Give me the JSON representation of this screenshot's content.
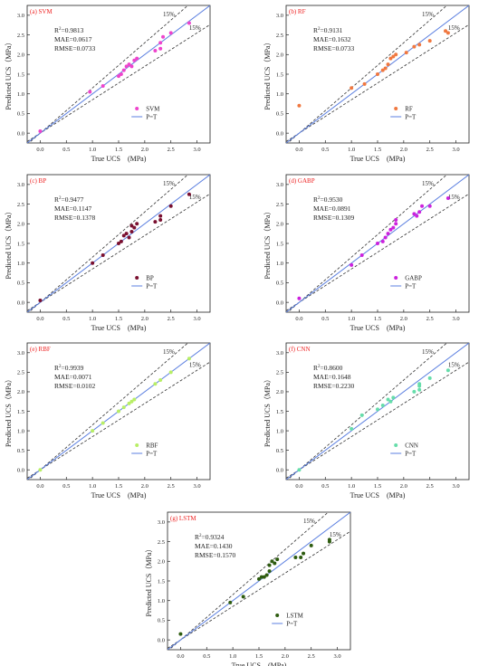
{
  "chart_data": [
    {
      "type": "scatter",
      "panel_label": "(a) SVM",
      "xlabel": "True UCS　(MPa)",
      "ylabel": "Predicted UCS（MPa）",
      "xlim": [
        -0.25,
        3.25
      ],
      "ylim": [
        -0.25,
        3.25
      ],
      "xticks": [
        "0.0",
        "0.5",
        "1.0",
        "1.5",
        "2.0",
        "2.5",
        "3.0"
      ],
      "yticks": [
        "0.0",
        "0.5",
        "1.0",
        "1.5",
        "2.0",
        "2.5",
        "3.0"
      ],
      "stats": [
        "R²=0.9813",
        "MAE=0.0617",
        "RMSE=0.0733"
      ],
      "band_labels": [
        "15%",
        "15%"
      ],
      "legend": [
        "SVM",
        "P=T"
      ],
      "legend_position": "bottom-right",
      "point_color": "#ee44cc",
      "series": [
        {
          "name": "SVM",
          "x": [
            0.0,
            0.95,
            1.2,
            1.5,
            1.55,
            1.6,
            1.65,
            1.7,
            1.75,
            1.8,
            1.85,
            2.2,
            2.3,
            2.3,
            2.35,
            2.5,
            2.85
          ],
          "y": [
            0.05,
            1.05,
            1.2,
            1.45,
            1.5,
            1.6,
            1.7,
            1.75,
            1.7,
            1.85,
            1.9,
            2.1,
            2.15,
            2.3,
            2.45,
            2.55,
            2.8
          ]
        }
      ]
    },
    {
      "type": "scatter",
      "panel_label": "(b) RF",
      "xlabel": "True UCS　(MPa)",
      "ylabel": "Predicted UCS（MPa）",
      "xlim": [
        -0.25,
        3.25
      ],
      "ylim": [
        -0.25,
        3.25
      ],
      "xticks": [
        "0.0",
        "0.5",
        "1.0",
        "1.5",
        "2.0",
        "2.5",
        "3.0"
      ],
      "yticks": [
        "0.0",
        "0.5",
        "1.0",
        "1.5",
        "2.0",
        "2.5",
        "3.0"
      ],
      "stats": [
        "R²=0.9131",
        "MAE=0.1632",
        "RMSE=0.0733"
      ],
      "band_labels": [
        "15%",
        "15%"
      ],
      "legend": [
        "RF",
        "P=T"
      ],
      "legend_position": "bottom-right",
      "point_color": "#f07840",
      "series": [
        {
          "name": "RF",
          "x": [
            0.0,
            1.0,
            1.25,
            1.5,
            1.6,
            1.65,
            1.7,
            1.75,
            1.8,
            1.85,
            2.05,
            2.2,
            2.3,
            2.5,
            2.8,
            2.85
          ],
          "y": [
            0.7,
            1.15,
            1.25,
            1.5,
            1.6,
            1.65,
            1.75,
            1.9,
            1.95,
            2.0,
            2.05,
            2.2,
            2.25,
            2.35,
            2.6,
            2.55
          ]
        }
      ]
    },
    {
      "type": "scatter",
      "panel_label": "(c) BP",
      "xlabel": "True UCS　(MPa)",
      "ylabel": "Predicted UCS（MPa）",
      "xlim": [
        -0.25,
        3.25
      ],
      "ylim": [
        -0.25,
        3.25
      ],
      "xticks": [
        "0.0",
        "0.5",
        "1.0",
        "1.5",
        "2.0",
        "2.5",
        "3.0"
      ],
      "yticks": [
        "0.0",
        "0.5",
        "1.0",
        "1.5",
        "2.0",
        "2.5",
        "3.0"
      ],
      "stats": [
        "R²=0.9477",
        "MAE=0.1147",
        "RMSE=0.1378"
      ],
      "band_labels": [
        "15%",
        "15%"
      ],
      "legend": [
        "BP",
        "P=T"
      ],
      "legend_position": "bottom-right",
      "point_color": "#7a1030",
      "series": [
        {
          "name": "BP",
          "x": [
            0.0,
            1.0,
            1.2,
            1.5,
            1.55,
            1.6,
            1.65,
            1.7,
            1.75,
            1.75,
            1.8,
            1.85,
            2.2,
            2.3,
            2.3,
            2.5,
            2.85
          ],
          "y": [
            0.05,
            1.0,
            1.2,
            1.5,
            1.55,
            1.7,
            1.75,
            1.65,
            1.8,
            1.95,
            1.9,
            2.0,
            2.05,
            2.1,
            2.2,
            2.45,
            2.75
          ]
        }
      ]
    },
    {
      "type": "scatter",
      "panel_label": "(d) GABP",
      "xlabel": "True UCS　(MPa)",
      "ylabel": "Predicted UCS（MPa）",
      "xlim": [
        -0.25,
        3.25
      ],
      "ylim": [
        -0.25,
        3.25
      ],
      "xticks": [
        "0.0",
        "0.5",
        "1.0",
        "1.5",
        "2.0",
        "2.5",
        "3.0"
      ],
      "yticks": [
        "0.0",
        "0.5",
        "1.0",
        "1.5",
        "2.0",
        "2.5",
        "3.0"
      ],
      "stats": [
        "R²=0.9530",
        "MAE=0.0891",
        "RMSE=0.1309"
      ],
      "band_labels": [
        "15%",
        "15%"
      ],
      "legend": [
        "GABP",
        "P=T"
      ],
      "legend_position": "bottom-right",
      "point_color": "#cc22dd",
      "series": [
        {
          "name": "GABP",
          "x": [
            0.0,
            1.0,
            1.2,
            1.5,
            1.6,
            1.65,
            1.7,
            1.75,
            1.8,
            1.85,
            1.85,
            2.2,
            2.25,
            2.3,
            2.35,
            2.5,
            2.85
          ],
          "y": [
            0.1,
            0.95,
            1.2,
            1.5,
            1.55,
            1.65,
            1.75,
            1.85,
            1.9,
            2.0,
            2.1,
            2.25,
            2.2,
            2.3,
            2.45,
            2.45,
            2.65
          ]
        }
      ]
    },
    {
      "type": "scatter",
      "panel_label": "(e) RBF",
      "xlabel": "True UCS　(MPa)",
      "ylabel": "Predicted UCS（MPa）",
      "xlim": [
        -0.25,
        3.25
      ],
      "ylim": [
        -0.25,
        3.25
      ],
      "xticks": [
        "0.0",
        "0.5",
        "1.0",
        "1.5",
        "2.0",
        "2.5",
        "3.0"
      ],
      "yticks": [
        "0.0",
        "0.5",
        "1.0",
        "1.5",
        "2.0",
        "2.5",
        "3.0"
      ],
      "stats": [
        "R²=0.9939",
        "MAE=0.0071",
        "RMSE=0.0102"
      ],
      "band_labels": [
        "15%",
        "15%"
      ],
      "legend": [
        "RBF",
        "P=T"
      ],
      "legend_position": "bottom-right",
      "point_color": "#b8ee66",
      "series": [
        {
          "name": "RBF",
          "x": [
            0.0,
            1.0,
            1.2,
            1.5,
            1.6,
            1.7,
            1.75,
            1.8,
            2.2,
            2.3,
            2.5,
            2.85
          ],
          "y": [
            0.0,
            1.0,
            1.2,
            1.5,
            1.6,
            1.7,
            1.75,
            1.8,
            2.2,
            2.3,
            2.5,
            2.85
          ]
        }
      ]
    },
    {
      "type": "scatter",
      "panel_label": "(f) CNN",
      "xlabel": "True UCS　(MPa)",
      "ylabel": "Predicted UCS（MPa）",
      "xlim": [
        -0.25,
        3.25
      ],
      "ylim": [
        -0.25,
        3.25
      ],
      "xticks": [
        "0.0",
        "0.5",
        "1.0",
        "1.5",
        "2.0",
        "2.5",
        "3.0"
      ],
      "yticks": [
        "0.0",
        "0.5",
        "1.0",
        "1.5",
        "2.0",
        "2.5",
        "3.0"
      ],
      "stats": [
        "R²=0.8600",
        "MAE=0.1648",
        "RMSE=0.2230"
      ],
      "band_labels": [
        "15%",
        "15%"
      ],
      "legend": [
        "CNN",
        "P=T"
      ],
      "legend_position": "bottom-right",
      "point_color": "#66ddaa",
      "series": [
        {
          "name": "CNN",
          "x": [
            0.0,
            1.0,
            1.2,
            1.5,
            1.6,
            1.7,
            1.75,
            1.8,
            2.2,
            2.3,
            2.3,
            2.3,
            2.5,
            2.85
          ],
          "y": [
            0.0,
            1.05,
            1.4,
            1.55,
            1.65,
            1.8,
            1.75,
            1.85,
            2.0,
            2.05,
            2.15,
            2.2,
            2.35,
            2.55
          ]
        }
      ]
    },
    {
      "type": "scatter",
      "panel_label": "(g) LSTM",
      "xlabel": "True UCS　(MPa)",
      "ylabel": "Predicted UCS（MPa）",
      "xlim": [
        -0.25,
        3.25
      ],
      "ylim": [
        -0.25,
        3.25
      ],
      "xticks": [
        "0.0",
        "0.5",
        "1.0",
        "1.5",
        "2.0",
        "2.5",
        "3.0"
      ],
      "yticks": [
        "0.0",
        "0.5",
        "1.0",
        "1.5",
        "2.0",
        "2.5",
        "3.0"
      ],
      "stats": [
        "R²=0.9324",
        "MAE=0.1430",
        "RMSE=0.1570"
      ],
      "band_labels": [
        "15%",
        "15%"
      ],
      "legend": [
        "LSTM",
        "P=T"
      ],
      "legend_position": "bottom-right",
      "point_color": "#2e5c10",
      "series": [
        {
          "name": "LSTM",
          "x": [
            0.0,
            0.95,
            1.2,
            1.5,
            1.55,
            1.6,
            1.65,
            1.7,
            1.7,
            1.75,
            1.8,
            1.85,
            2.2,
            2.3,
            2.35,
            2.5,
            2.85,
            2.85
          ],
          "y": [
            0.15,
            0.95,
            1.1,
            1.55,
            1.6,
            1.6,
            1.65,
            1.75,
            1.9,
            2.0,
            1.95,
            2.05,
            2.1,
            2.1,
            2.2,
            2.4,
            2.55,
            2.5
          ]
        }
      ]
    }
  ],
  "colors": {
    "identity_line": "#5b7fe0",
    "band_line": "#333333",
    "panel_label": "#ee2222",
    "axis": "#222222"
  }
}
